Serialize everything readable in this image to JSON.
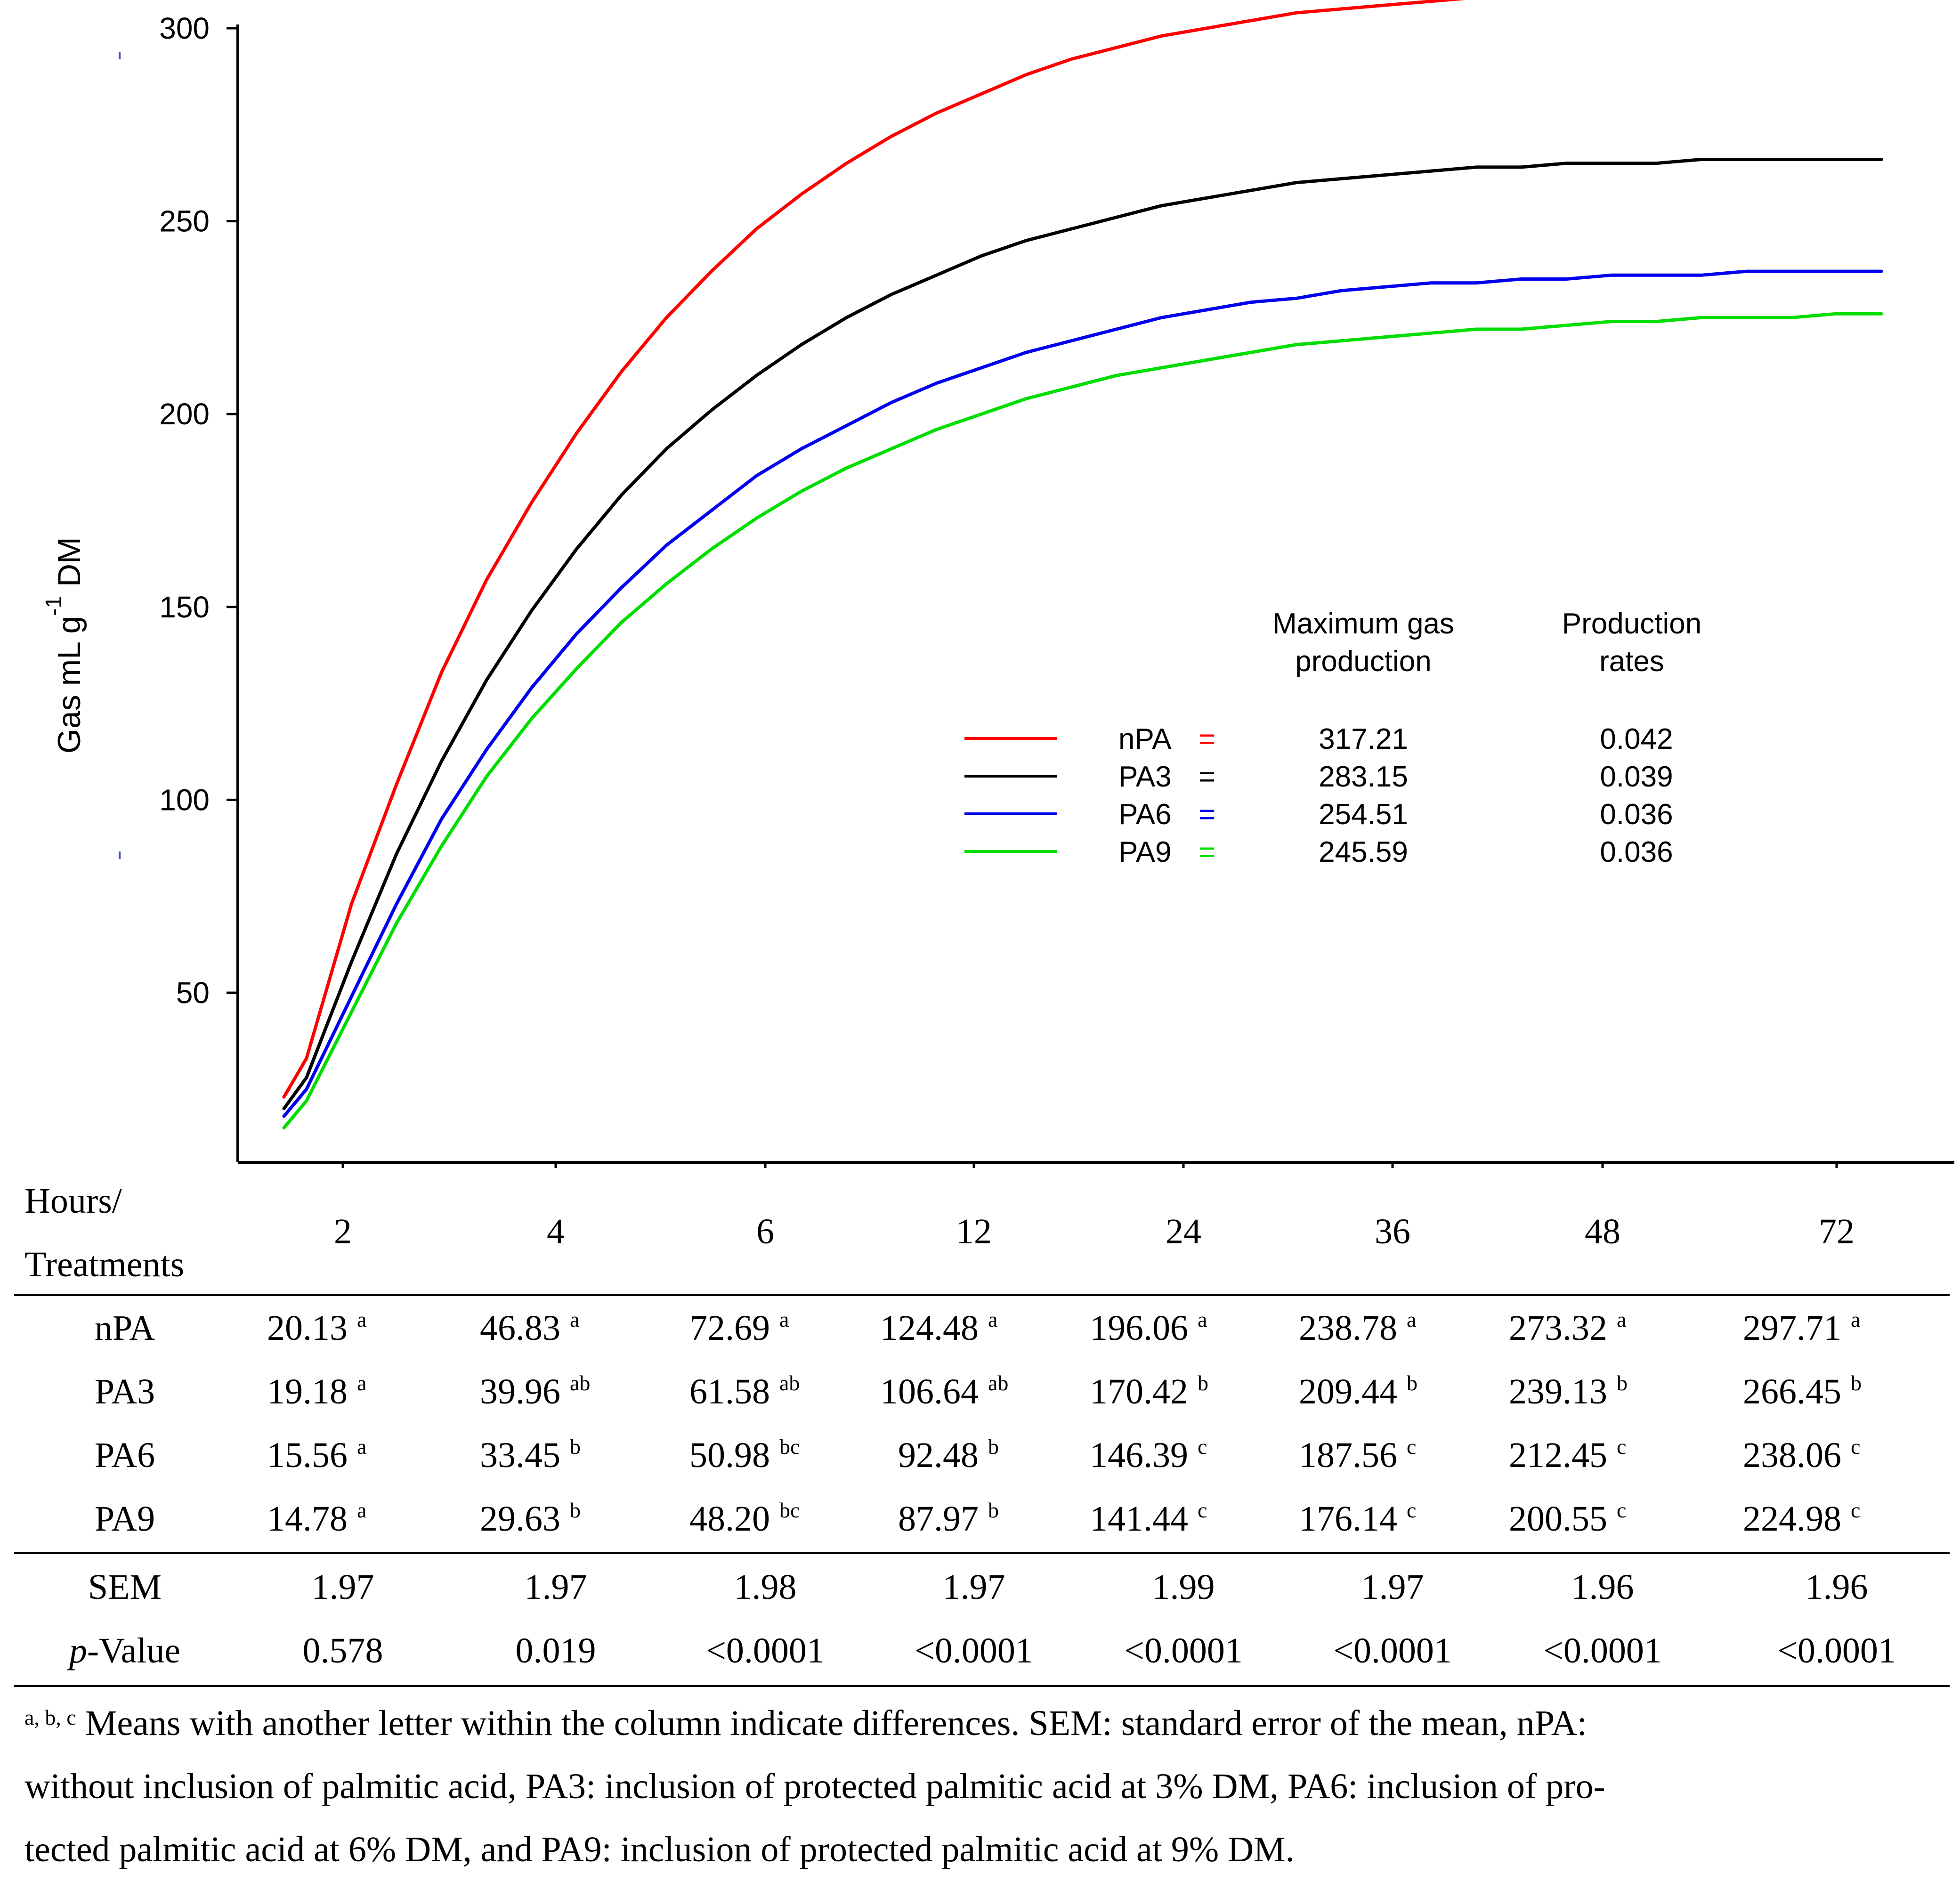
{
  "chart_data": {
    "type": "line",
    "ylabel": "Gas mL g",
    "ylabel_sup": "-1",
    "ylabel_suffix": " DM",
    "xlabel": "",
    "ylim": [
      0,
      300
    ],
    "yticks": [
      "50",
      "100",
      "150",
      "200",
      "250",
      "300"
    ],
    "ytick_values": [
      50,
      100,
      150,
      200,
      250,
      300
    ],
    "x": [
      1,
      2,
      4,
      6,
      8,
      10,
      12,
      14,
      16,
      18,
      20,
      22,
      24,
      26,
      28,
      30,
      32,
      34,
      36,
      38,
      40,
      42,
      44,
      46,
      48,
      50,
      52,
      54,
      56,
      58,
      60,
      62,
      64,
      66,
      68,
      70,
      72
    ],
    "series": [
      {
        "name": "nPA",
        "color": "#ff0000",
        "values": [
          23,
          33,
          73,
          104,
          133,
          157,
          177,
          195,
          211,
          225,
          237,
          248,
          257,
          265,
          272,
          278,
          283,
          288,
          292,
          295,
          298,
          300,
          302,
          304,
          305,
          306,
          307,
          308,
          309,
          309,
          310,
          311,
          312,
          313,
          313,
          314,
          315
        ]
      },
      {
        "name": "PA3",
        "color": "#000000",
        "values": [
          20,
          28,
          58,
          86,
          110,
          131,
          149,
          165,
          179,
          191,
          201,
          210,
          218,
          225,
          231,
          236,
          241,
          245,
          248,
          251,
          254,
          256,
          258,
          260,
          261,
          262,
          263,
          264,
          264,
          265,
          265,
          265,
          266,
          266,
          266,
          266,
          266
        ]
      },
      {
        "name": "PA6",
        "color": "#0000ee",
        "values": [
          18,
          25,
          49,
          73,
          95,
          113,
          129,
          143,
          155,
          166,
          175,
          184,
          191,
          197,
          203,
          208,
          212,
          216,
          219,
          222,
          225,
          227,
          229,
          230,
          232,
          233,
          234,
          234,
          235,
          235,
          236,
          236,
          236,
          237,
          237,
          237,
          237
        ]
      },
      {
        "name": "PA9",
        "color": "#00dd00",
        "values": [
          15,
          22,
          45,
          68,
          88,
          106,
          121,
          134,
          146,
          156,
          165,
          173,
          180,
          186,
          191,
          196,
          200,
          204,
          207,
          210,
          212,
          214,
          216,
          218,
          219,
          220,
          221,
          222,
          222,
          223,
          224,
          224,
          225,
          225,
          225,
          226,
          226
        ]
      }
    ],
    "legend": {
      "header_max": [
        "Maximum gas",
        "production"
      ],
      "header_rate": [
        "Production",
        "rates"
      ],
      "equals": "=",
      "rows": [
        {
          "name": "nPA",
          "max": "317.21",
          "rate": "0.042",
          "color": "#ff0000"
        },
        {
          "name": "PA3",
          "max": "283.15",
          "rate": "0.039",
          "color": "#000000"
        },
        {
          "name": "PA6",
          "max": "254.51",
          "rate": "0.036",
          "color": "#0000ee"
        },
        {
          "name": "PA9",
          "max": "245.59",
          "rate": "0.036",
          "color": "#00dd00"
        }
      ]
    }
  },
  "table": {
    "header_label": [
      "Hours/",
      "Treatments"
    ],
    "hours": [
      "2",
      "4",
      "6",
      "12",
      "24",
      "36",
      "48",
      "72"
    ],
    "rows": [
      {
        "name": "nPA",
        "cells": [
          [
            "20.13",
            "a"
          ],
          [
            "46.83",
            "a"
          ],
          [
            "72.69",
            "a"
          ],
          [
            "124.48",
            "a"
          ],
          [
            "196.06",
            "a"
          ],
          [
            "238.78",
            "a"
          ],
          [
            "273.32",
            "a"
          ],
          [
            "297.71",
            "a"
          ]
        ]
      },
      {
        "name": "PA3",
        "cells": [
          [
            "19.18",
            "a"
          ],
          [
            "39.96",
            "ab"
          ],
          [
            "61.58",
            "ab"
          ],
          [
            "106.64",
            "ab"
          ],
          [
            "170.42",
            "b"
          ],
          [
            "209.44",
            "b"
          ],
          [
            "239.13",
            "b"
          ],
          [
            "266.45",
            "b"
          ]
        ]
      },
      {
        "name": "PA6",
        "cells": [
          [
            "15.56",
            "a"
          ],
          [
            "33.45",
            "b"
          ],
          [
            "50.98",
            "bc"
          ],
          [
            "92.48",
            "b"
          ],
          [
            "146.39",
            "c"
          ],
          [
            "187.56",
            "c"
          ],
          [
            "212.45",
            "c"
          ],
          [
            "238.06",
            "c"
          ]
        ]
      },
      {
        "name": "PA9",
        "cells": [
          [
            "14.78",
            "a"
          ],
          [
            "29.63",
            "b"
          ],
          [
            "48.20",
            "bc"
          ],
          [
            "87.97",
            "b"
          ],
          [
            "141.44",
            "c"
          ],
          [
            "176.14",
            "c"
          ],
          [
            "200.55",
            "c"
          ],
          [
            "224.98",
            "c"
          ]
        ]
      }
    ],
    "sem_label": "SEM",
    "sem": [
      "1.97",
      "1.97",
      "1.98",
      "1.97",
      "1.99",
      "1.97",
      "1.96",
      "1.96"
    ],
    "p_label_italic": "p",
    "p_label_rest": "-Value",
    "p": [
      "0.578",
      "0.019",
      "<0.0001",
      "<0.0001",
      "<0.0001",
      "<0.0001",
      "<0.0001",
      "<0.0001"
    ]
  },
  "footnote": {
    "marks": "a, b, c",
    "lines": [
      " Means with another letter within the column indicate differences. SEM: standard error of the mean, nPA:",
      "without inclusion of palmitic acid, PA3: inclusion of protected palmitic acid at 3% DM, PA6: inclusion of pro-",
      "tected palmitic acid at 6% DM, and PA9: inclusion of protected palmitic acid at 9% DM."
    ]
  }
}
